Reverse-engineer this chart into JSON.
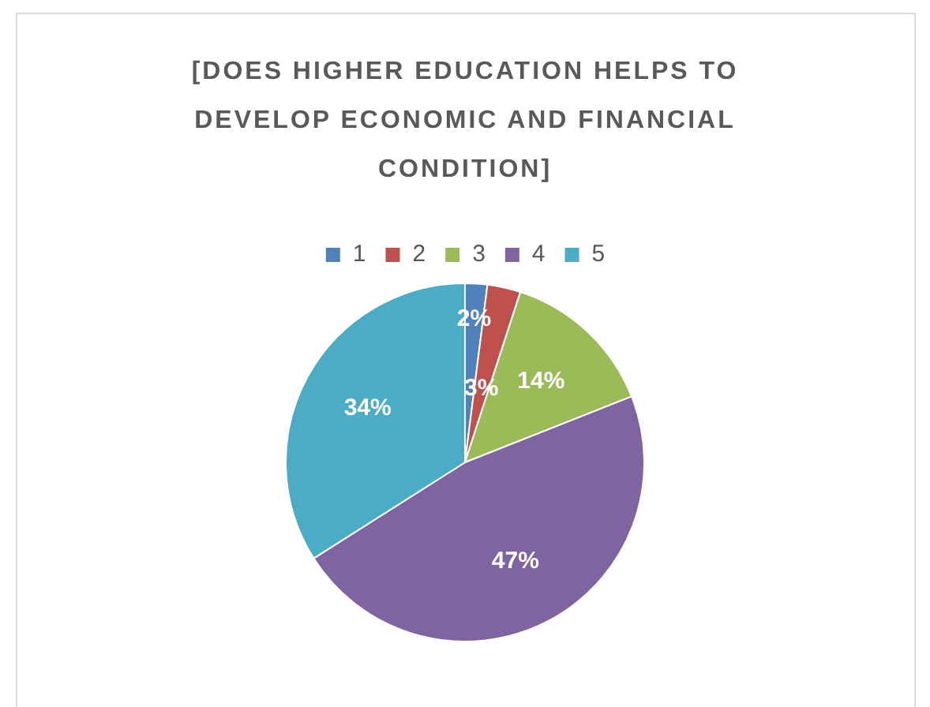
{
  "chart_data": {
    "type": "pie",
    "title": "[DOES HIGHER EDUCATION HELPS TO DEVELOP ECONOMIC AND FINANCIAL CONDITION]",
    "categories": [
      "1",
      "2",
      "3",
      "4",
      "5"
    ],
    "values": [
      2,
      3,
      14,
      47,
      34
    ],
    "colors": [
      "#4f81bd",
      "#c0504d",
      "#9bbb59",
      "#8064a2",
      "#4bacc6"
    ],
    "value_labels": [
      "2%",
      "3%",
      "14%",
      "47%",
      "34%"
    ],
    "legend": "top"
  }
}
